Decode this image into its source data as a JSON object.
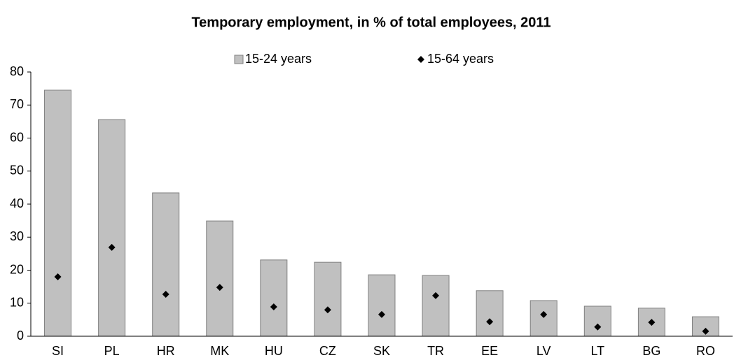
{
  "chart_data": {
    "type": "bar",
    "title": "Temporary employment, in % of total employees, 2011",
    "categories": [
      "SI",
      "PL",
      "HR",
      "MK",
      "HU",
      "CZ",
      "SK",
      "TR",
      "EE",
      "LV",
      "LT",
      "BG",
      "RO"
    ],
    "series": [
      {
        "name": "15-24 years",
        "type": "bar",
        "color": "#c0c0c0",
        "values": [
          74.5,
          65.6,
          43.4,
          34.9,
          23.1,
          22.4,
          18.6,
          18.4,
          13.8,
          10.8,
          9.1,
          8.5,
          5.9
        ]
      },
      {
        "name": "15-64 years",
        "type": "scatter",
        "color": "#000000",
        "values": [
          18.0,
          26.9,
          12.7,
          14.8,
          8.9,
          8.0,
          6.6,
          12.3,
          4.4,
          6.6,
          2.8,
          4.2,
          1.5
        ]
      }
    ],
    "ylim": [
      0,
      80
    ],
    "yticks": [
      0,
      10,
      20,
      30,
      40,
      50,
      60,
      70,
      80
    ],
    "grid": false,
    "legend": "top"
  }
}
